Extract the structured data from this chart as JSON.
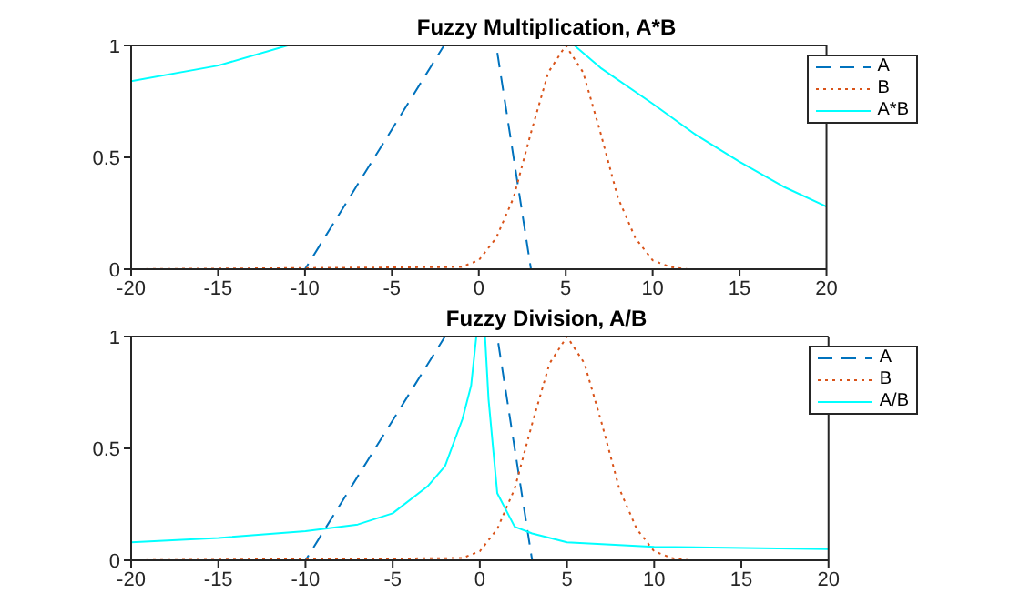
{
  "chart_data": [
    {
      "type": "line",
      "title": "Fuzzy Multiplication, A*B",
      "xlim": [
        -20,
        20
      ],
      "xticks": [
        -20,
        -15,
        -10,
        -5,
        0,
        5,
        10,
        15,
        20
      ],
      "ylim": [
        0,
        1
      ],
      "yticks": [
        0,
        0.5,
        1
      ],
      "legend": "top right",
      "grid": false,
      "series": [
        {
          "name": "A",
          "color": "#0072bd",
          "line_style": "dashed",
          "x": [
            -20,
            -10,
            -2,
            1,
            3,
            20
          ],
          "values": [
            0,
            0,
            1,
            1,
            0,
            0
          ]
        },
        {
          "name": "B",
          "color": "#d95319",
          "line_style": "dotted",
          "x": [
            -20,
            -1,
            0,
            1,
            2,
            3,
            4,
            5,
            6,
            7,
            8,
            9,
            10,
            11,
            12,
            20
          ],
          "values": [
            0,
            0.01,
            0.04,
            0.14,
            0.32,
            0.61,
            0.88,
            1,
            0.88,
            0.61,
            0.32,
            0.14,
            0.04,
            0.01,
            0,
            0
          ]
        },
        {
          "name": "A*B",
          "color": "#00ffff",
          "line_style": "solid",
          "x": [
            -20,
            -15,
            -11,
            5.5,
            7,
            10,
            12.5,
            15,
            17.5,
            20
          ],
          "values": [
            0.84,
            0.91,
            1,
            1,
            0.9,
            0.74,
            0.6,
            0.48,
            0.37,
            0.28
          ]
        }
      ]
    },
    {
      "type": "line",
      "title": "Fuzzy Division, A/B",
      "xlim": [
        -20,
        20
      ],
      "xticks": [
        -20,
        -15,
        -10,
        -5,
        0,
        5,
        10,
        15,
        20
      ],
      "ylim": [
        0,
        1
      ],
      "yticks": [
        0,
        0.5,
        1
      ],
      "legend": "top right",
      "grid": false,
      "series": [
        {
          "name": "A",
          "color": "#0072bd",
          "line_style": "dashed",
          "x": [
            -20,
            -10,
            -2,
            1,
            3,
            20
          ],
          "values": [
            0,
            0,
            1,
            1,
            0,
            0
          ]
        },
        {
          "name": "B",
          "color": "#d95319",
          "line_style": "dotted",
          "x": [
            -20,
            -1,
            0,
            1,
            2,
            3,
            4,
            5,
            6,
            7,
            8,
            9,
            10,
            11,
            12,
            20
          ],
          "values": [
            0,
            0.01,
            0.04,
            0.14,
            0.32,
            0.61,
            0.88,
            1,
            0.88,
            0.61,
            0.32,
            0.14,
            0.04,
            0.01,
            0,
            0
          ]
        },
        {
          "name": "A/B",
          "color": "#00ffff",
          "line_style": "solid",
          "x": [
            -20,
            -15,
            -10,
            -7,
            -5,
            -3,
            -2,
            -1,
            -0.5,
            -0.2,
            0.3,
            0.5,
            1,
            2,
            3,
            5,
            10,
            20
          ],
          "values": [
            0.08,
            0.1,
            0.13,
            0.16,
            0.21,
            0.33,
            0.42,
            0.63,
            0.78,
            1,
            1,
            0.72,
            0.3,
            0.15,
            0.12,
            0.08,
            0.06,
            0.05
          ]
        }
      ]
    }
  ]
}
